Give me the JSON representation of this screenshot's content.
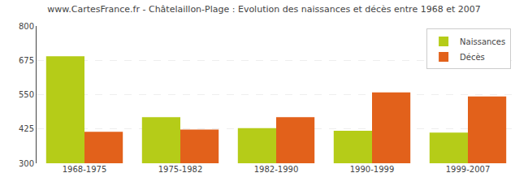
{
  "chart_data": {
    "type": "bar",
    "title": "www.CartesFrance.fr - Châtelaillon-Plage : Evolution des naissances et décès entre 1968 et 2007",
    "categories": [
      "1968-1975",
      "1975-1982",
      "1982-1990",
      "1990-1999",
      "1999-2007"
    ],
    "series": [
      {
        "name": "Naissances",
        "color": "#b5cc18",
        "values": [
          690,
          468,
          428,
          418,
          412
        ]
      },
      {
        "name": "Décès",
        "color": "#e2611b",
        "values": [
          415,
          423,
          468,
          558,
          543
        ]
      }
    ],
    "ylim": [
      300,
      800
    ],
    "yticks": [
      300,
      425,
      550,
      675,
      800
    ],
    "grid": true,
    "legend": "upper right"
  }
}
